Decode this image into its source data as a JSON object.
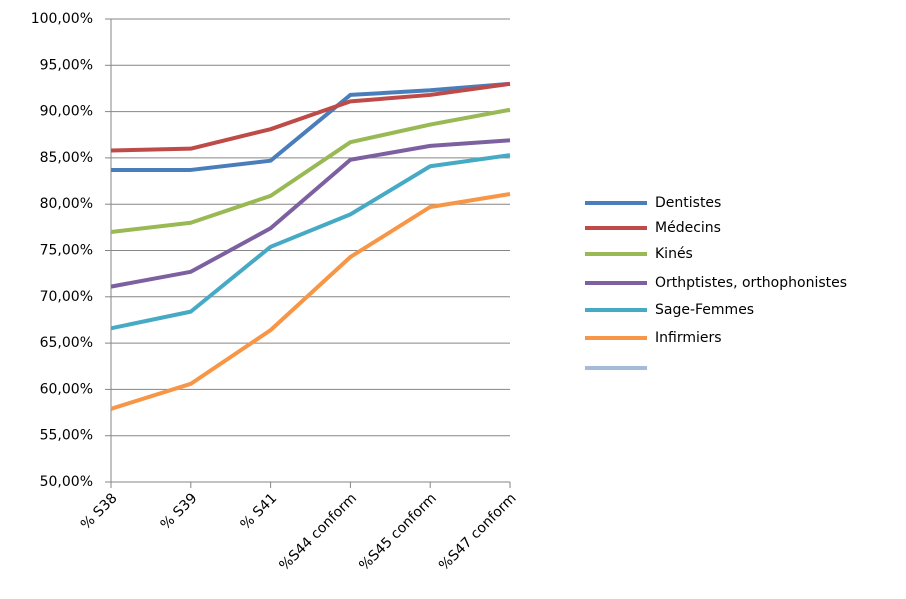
{
  "chart_data": {
    "type": "line",
    "categories": [
      "% S38",
      "% S39",
      "% S41",
      "%S44 conform",
      "%S45 conform",
      "%S47 conform"
    ],
    "series": [
      {
        "name": "Dentistes",
        "color": "#4a7ebb",
        "values": [
          83.7,
          83.7,
          84.7,
          91.8,
          92.3,
          93.0
        ]
      },
      {
        "name": "Médecins",
        "color": "#be4b48",
        "values": [
          85.8,
          86.0,
          88.1,
          91.1,
          91.8,
          93.0
        ]
      },
      {
        "name": "Kinés",
        "color": "#98b954",
        "values": [
          77.0,
          78.0,
          80.9,
          86.7,
          88.6,
          90.2
        ]
      },
      {
        "name": "Orthptistes, orthophonistes",
        "color": "#7d60a0",
        "values": [
          71.1,
          72.7,
          77.4,
          84.8,
          86.3,
          86.9
        ]
      },
      {
        "name": "Sage-Femmes",
        "color": "#46aac5",
        "values": [
          66.6,
          68.4,
          75.4,
          78.9,
          84.1,
          85.3
        ]
      },
      {
        "name": "Infirmiers",
        "color": "#f79646",
        "values": [
          57.9,
          60.6,
          66.4,
          74.3,
          79.7,
          81.1
        ]
      }
    ],
    "ylim": [
      50,
      100
    ],
    "yticks": [
      {
        "value": 50,
        "label": "50,00%"
      },
      {
        "value": 55,
        "label": "55,00%"
      },
      {
        "value": 60,
        "label": "60,00%"
      },
      {
        "value": 65,
        "label": "65,00%"
      },
      {
        "value": 70,
        "label": "70,00%"
      },
      {
        "value": 75,
        "label": "75,00%"
      },
      {
        "value": 80,
        "label": "80,00%"
      },
      {
        "value": 85,
        "label": "85,00%"
      },
      {
        "value": 90,
        "label": "90,00%"
      },
      {
        "value": 95,
        "label": "95,00%"
      },
      {
        "value": 100,
        "label": "100,00%"
      }
    ],
    "grid": true,
    "legend": "right"
  }
}
